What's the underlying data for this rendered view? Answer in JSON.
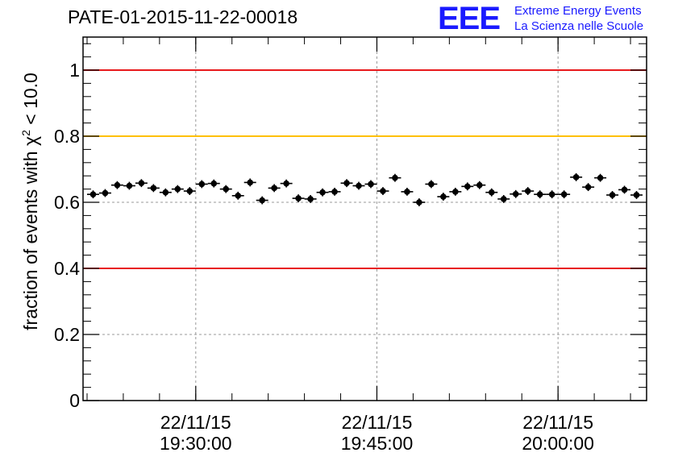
{
  "header": {
    "run_title": "PATE-01-2015-11-22-00018",
    "logo_mark": "EEE",
    "logo_line1": "Extreme Energy Events",
    "logo_line2": "La Scienza nelle Scuole"
  },
  "colors": {
    "reference_red": "#e8191c",
    "reference_orange": "#ffc000",
    "marker": "#000000",
    "logo_blue": "#1a1aff"
  },
  "chart_data": {
    "type": "scatter",
    "title": "PATE-01-2015-11-22-00018",
    "ylabel_text": "fraction of events with ",
    "ylabel_symbol": "χ",
    "ylabel_sup": "2",
    "ylabel_tail": " < 10.0",
    "xlabel": "",
    "xlim": [
      "2015-11-22 19:20:40",
      "2015-11-22 20:07:20"
    ],
    "ylim": [
      0,
      1.1
    ],
    "grid": true,
    "x_ticks": [
      {
        "value": "2015-11-22 19:30:00",
        "date": "22/11/15",
        "time": "19:30:00"
      },
      {
        "value": "2015-11-22 19:45:00",
        "date": "22/11/15",
        "time": "19:45:00"
      },
      {
        "value": "2015-11-22 20:00:00",
        "date": "22/11/15",
        "time": "20:00:00"
      }
    ],
    "y_ticks": [
      {
        "value": 0,
        "label": "0"
      },
      {
        "value": 0.2,
        "label": "0.2"
      },
      {
        "value": 0.4,
        "label": "0.4"
      },
      {
        "value": 0.6,
        "label": "0.6"
      },
      {
        "value": 0.8,
        "label": "0.8"
      },
      {
        "value": 1.0,
        "label": "1"
      }
    ],
    "reference_lines": [
      {
        "y": 1.0,
        "color": "#e8191c"
      },
      {
        "y": 0.8,
        "color": "#ffc000"
      },
      {
        "y": 0.4,
        "color": "#e8191c"
      }
    ],
    "x": [
      "19:21:30",
      "19:22:30",
      "19:23:30",
      "19:24:30",
      "19:25:30",
      "19:26:30",
      "19:27:30",
      "19:28:30",
      "19:29:30",
      "19:30:30",
      "19:31:30",
      "19:32:30",
      "19:33:30",
      "19:34:30",
      "19:35:30",
      "19:36:30",
      "19:37:30",
      "19:38:30",
      "19:39:30",
      "19:40:30",
      "19:41:30",
      "19:42:30",
      "19:43:30",
      "19:44:30",
      "19:45:30",
      "19:46:30",
      "19:47:30",
      "19:48:30",
      "19:49:30",
      "19:50:30",
      "19:51:30",
      "19:52:30",
      "19:53:30",
      "19:54:30",
      "19:55:30",
      "19:56:30",
      "19:57:30",
      "19:58:30",
      "19:59:30",
      "20:00:30",
      "20:01:30",
      "20:02:30",
      "20:03:30",
      "20:04:30",
      "20:05:30",
      "20:06:30"
    ],
    "y": [
      0.624,
      0.628,
      0.652,
      0.65,
      0.658,
      0.643,
      0.63,
      0.64,
      0.634,
      0.655,
      0.657,
      0.64,
      0.62,
      0.66,
      0.606,
      0.643,
      0.657,
      0.612,
      0.61,
      0.63,
      0.632,
      0.658,
      0.65,
      0.655,
      0.634,
      0.674,
      0.632,
      0.6,
      0.655,
      0.617,
      0.632,
      0.648,
      0.652,
      0.63,
      0.61,
      0.625,
      0.634,
      0.624,
      0.624,
      0.624,
      0.676,
      0.646,
      0.674,
      0.622,
      0.638,
      0.622
    ],
    "x_error_seconds": 30,
    "y_error": 0.012
  }
}
